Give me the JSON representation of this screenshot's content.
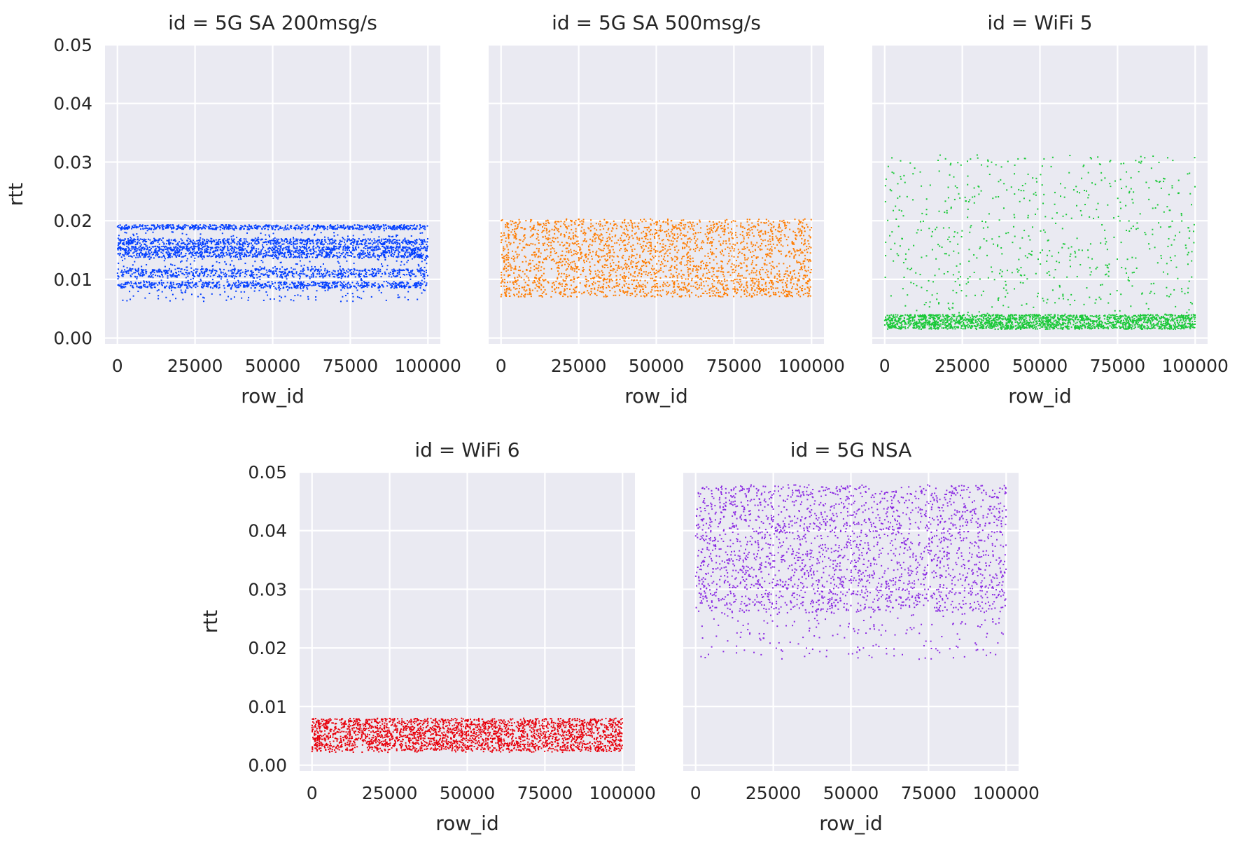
{
  "chart_data": [
    {
      "type": "scatter",
      "title": "id = 5G SA 200msg/s",
      "xlabel": "row_id",
      "ylabel": "rtt",
      "xlim": [
        -4000,
        104000
      ],
      "ylim": [
        -0.001,
        0.05
      ],
      "xticks": [
        0,
        25000,
        50000,
        75000,
        100000
      ],
      "xtick_labels": [
        "0",
        "25000",
        "50000",
        "75000",
        "100000"
      ],
      "yticks": [
        0.0,
        0.01,
        0.02,
        0.03,
        0.04,
        0.05
      ],
      "ytick_labels": [
        "0.00",
        "0.01",
        "0.02",
        "0.03",
        "0.04",
        "0.05"
      ],
      "grid": true,
      "series": [
        {
          "color": "#023eff",
          "x_range": [
            0,
            100000
          ],
          "dense_bands": [
            [
              0.0085,
              0.0096
            ],
            [
              0.0104,
              0.0118
            ],
            [
              0.0137,
              0.0147
            ],
            [
              0.0148,
              0.0157
            ],
            [
              0.0159,
              0.0169
            ],
            [
              0.0185,
              0.0193
            ]
          ],
          "sparse_range": [
            0.0062,
            0.0193
          ]
        }
      ]
    },
    {
      "type": "scatter",
      "title": "id = 5G SA 500msg/s",
      "xlabel": "row_id",
      "ylabel": "",
      "xlim": [
        -4000,
        104000
      ],
      "ylim": [
        -0.001,
        0.05
      ],
      "xticks": [
        0,
        25000,
        50000,
        75000,
        100000
      ],
      "xtick_labels": [
        "0",
        "25000",
        "50000",
        "75000",
        "100000"
      ],
      "yticks": [
        0.0,
        0.01,
        0.02,
        0.03,
        0.04,
        0.05
      ],
      "ytick_labels": [],
      "grid": true,
      "series": [
        {
          "color": "#ff7c00",
          "x_range": [
            0,
            100000
          ],
          "dense_bands": [
            [
              0.01,
              0.0203
            ]
          ],
          "sparse_range": [
            0.007,
            0.01
          ]
        }
      ]
    },
    {
      "type": "scatter",
      "title": "id = WiFi 5",
      "xlabel": "row_id",
      "ylabel": "",
      "xlim": [
        -4000,
        104000
      ],
      "ylim": [
        -0.001,
        0.05
      ],
      "xticks": [
        0,
        25000,
        50000,
        75000,
        100000
      ],
      "xtick_labels": [
        "0",
        "25000",
        "50000",
        "75000",
        "100000"
      ],
      "yticks": [
        0.0,
        0.01,
        0.02,
        0.03,
        0.04,
        0.05
      ],
      "ytick_labels": [],
      "grid": true,
      "series": [
        {
          "color": "#1ac938",
          "x_range": [
            0,
            100000
          ],
          "dense_bands": [
            [
              0.0015,
              0.004
            ]
          ],
          "sparse_range": [
            0.0015,
            0.0312
          ]
        }
      ]
    },
    {
      "type": "scatter",
      "title": "id = WiFi 6",
      "xlabel": "row_id",
      "ylabel": "rtt",
      "xlim": [
        -4000,
        104000
      ],
      "ylim": [
        -0.001,
        0.05
      ],
      "xticks": [
        0,
        25000,
        50000,
        75000,
        100000
      ],
      "xtick_labels": [
        "0",
        "25000",
        "50000",
        "75000",
        "100000"
      ],
      "yticks": [
        0.0,
        0.01,
        0.02,
        0.03,
        0.04,
        0.05
      ],
      "ytick_labels": [
        "0.00",
        "0.01",
        "0.02",
        "0.03",
        "0.04",
        "0.05"
      ],
      "grid": true,
      "series": [
        {
          "color": "#e8000b",
          "x_range": [
            0,
            100000
          ],
          "dense_bands": [
            [
              0.0025,
              0.008
            ]
          ],
          "sparse_range": [
            0.0022,
            0.008
          ]
        }
      ]
    },
    {
      "type": "scatter",
      "title": "id = 5G NSA",
      "xlabel": "row_id",
      "ylabel": "",
      "xlim": [
        -4000,
        104000
      ],
      "ylim": [
        -0.001,
        0.05
      ],
      "xticks": [
        0,
        25000,
        50000,
        75000,
        100000
      ],
      "xtick_labels": [
        "0",
        "25000",
        "50000",
        "75000",
        "100000"
      ],
      "yticks": [
        0.0,
        0.01,
        0.02,
        0.03,
        0.04,
        0.05
      ],
      "ytick_labels": [],
      "grid": true,
      "series": [
        {
          "color": "#8b2be2",
          "x_range": [
            0,
            100000
          ],
          "dense_bands": [
            [
              0.026,
              0.0478
            ]
          ],
          "sparse_range": [
            0.018,
            0.0478
          ]
        }
      ]
    }
  ]
}
